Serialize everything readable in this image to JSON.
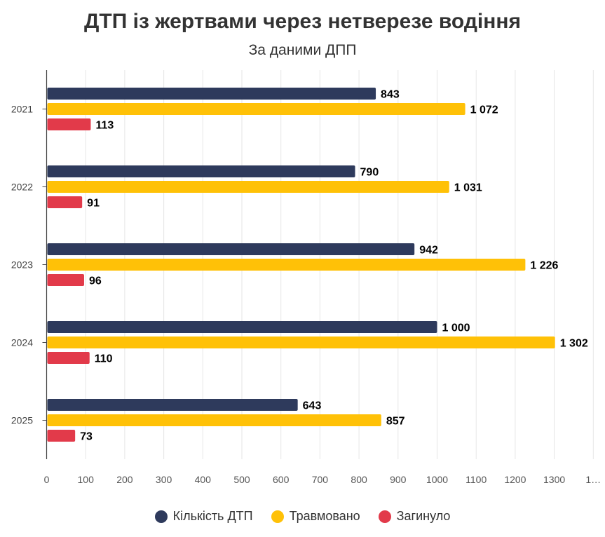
{
  "chart_data": {
    "type": "bar",
    "orientation": "horizontal",
    "title": "ДТП із жертвами через нетверезе водіння",
    "subtitle": "За даними ДПП",
    "categories": [
      "2021",
      "2022",
      "2023",
      "2024",
      "2025"
    ],
    "series": [
      {
        "name": "Кількість ДТП",
        "color": "#2e3a5c",
        "values": [
          843,
          790,
          942,
          1000,
          643
        ],
        "labels": [
          "843",
          "790",
          "942",
          "1 000",
          "643"
        ]
      },
      {
        "name": "Травмовано",
        "color": "#ffc107",
        "values": [
          1072,
          1031,
          1226,
          1302,
          857
        ],
        "labels": [
          "1 072",
          "1 031",
          "1 226",
          "1 302",
          "857"
        ]
      },
      {
        "name": "Загинуло",
        "color": "#e23a4a",
        "values": [
          113,
          91,
          96,
          110,
          73
        ],
        "labels": [
          "113",
          "91",
          "96",
          "110",
          "73"
        ]
      }
    ],
    "xlim": [
      0,
      1400
    ],
    "x_ticks": [
      "0",
      "100",
      "200",
      "300",
      "400",
      "500",
      "600",
      "700",
      "800",
      "900",
      "1000",
      "1100",
      "1200",
      "1300",
      "1…"
    ],
    "grid": true,
    "legend": "bottom"
  }
}
